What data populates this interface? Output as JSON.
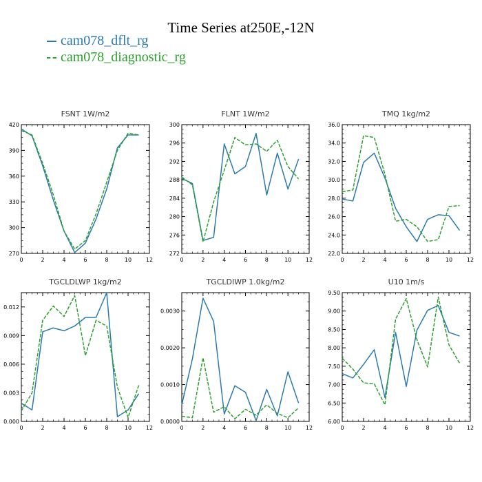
{
  "title": "Time Series at250E,-12N",
  "colors": {
    "dflt": "#2a7ab0",
    "diag": "#2ca02c"
  },
  "legend": [
    {
      "label": "cam078_dflt_rg",
      "color": "#2a7ab0"
    },
    {
      "label": "cam078_diagnostic_rg",
      "color": "#2ca02c"
    }
  ],
  "chart_data": [
    {
      "type": "line",
      "title": "FSNT   1W/m2",
      "x": [
        0,
        1,
        2,
        3,
        4,
        5,
        6,
        7,
        8,
        9,
        10,
        11
      ],
      "xlim": [
        0,
        12
      ],
      "xticks": [
        0,
        2,
        4,
        6,
        8,
        10,
        12
      ],
      "ylim": [
        270,
        420
      ],
      "yticks": [
        270,
        300,
        330,
        360,
        390,
        420
      ],
      "ytick_labels": [
        "270",
        "300",
        "330",
        "360",
        "390",
        "420"
      ],
      "series": [
        {
          "name": "cam078_dflt_rg",
          "values": [
            415,
            407,
            372,
            332,
            296,
            271,
            282,
            310,
            345,
            393,
            408,
            408
          ]
        },
        {
          "name": "cam078_diagnostic_rg",
          "values": [
            413,
            408,
            375,
            338,
            296,
            275,
            285,
            316,
            353,
            390,
            410,
            408
          ]
        }
      ]
    },
    {
      "type": "line",
      "title": "FLNT   1W/m2",
      "x": [
        0,
        1,
        2,
        3,
        4,
        5,
        6,
        7,
        8,
        9,
        10,
        11
      ],
      "xlim": [
        0,
        12
      ],
      "xticks": [
        0,
        2,
        4,
        6,
        8,
        10,
        12
      ],
      "ylim": [
        272,
        300
      ],
      "yticks": [
        272,
        276,
        280,
        284,
        288,
        292,
        296,
        300
      ],
      "ytick_labels": [
        "272",
        "276",
        "280",
        "284",
        "288",
        "292",
        "296",
        "300"
      ],
      "series": [
        {
          "name": "cam078_dflt_rg",
          "values": [
            288.3,
            287.2,
            274.8,
            275.5,
            295.8,
            289.3,
            290.9,
            298.1,
            284.7,
            293.8,
            286.0,
            292.5
          ]
        },
        {
          "name": "cam078_diagnostic_rg",
          "values": [
            288.6,
            286.9,
            274.5,
            283.2,
            290.1,
            297.2,
            295.6,
            295.8,
            294.2,
            296.6,
            290.9,
            288.2
          ]
        }
      ]
    },
    {
      "type": "line",
      "title": "TMQ   1kg/m2",
      "x": [
        0,
        1,
        2,
        3,
        4,
        5,
        6,
        7,
        8,
        9,
        10,
        11
      ],
      "xlim": [
        0,
        12
      ],
      "xticks": [
        0,
        2,
        4,
        6,
        8,
        10,
        12
      ],
      "ylim": [
        22,
        36
      ],
      "yticks": [
        22,
        24,
        26,
        28,
        30,
        32,
        34,
        36
      ],
      "ytick_labels": [
        "22.0",
        "24.0",
        "26.0",
        "28.0",
        "30.0",
        "32.0",
        "34.0",
        "36.0"
      ],
      "series": [
        {
          "name": "cam078_dflt_rg",
          "values": [
            27.9,
            27.7,
            31.9,
            32.9,
            30.2,
            26.9,
            24.9,
            23.3,
            25.7,
            26.2,
            26.1,
            24.5
          ]
        },
        {
          "name": "cam078_diagnostic_rg",
          "values": [
            28.7,
            28.9,
            34.8,
            34.6,
            30.6,
            25.5,
            25.7,
            24.9,
            23.3,
            23.5,
            27.1,
            27.2
          ]
        }
      ]
    },
    {
      "type": "line",
      "title": "TGCLDLWP   1kg/m2",
      "x": [
        0,
        1,
        2,
        3,
        4,
        5,
        6,
        7,
        8,
        9,
        10,
        11
      ],
      "xlim": [
        0,
        12
      ],
      "xticks": [
        0,
        2,
        4,
        6,
        8,
        10,
        12
      ],
      "ylim": [
        0,
        0.0135
      ],
      "yticks": [
        0,
        0.003,
        0.006,
        0.009,
        0.012
      ],
      "ytick_labels": [
        "0.000",
        "0.003",
        "0.006",
        "0.009",
        "0.012"
      ],
      "series": [
        {
          "name": "cam078_dflt_rg",
          "values": [
            0.0019,
            0.0012,
            0.0094,
            0.0098,
            0.0095,
            0.01,
            0.0109,
            0.0109,
            0.0135,
            0.0005,
            0.0012,
            0.0029
          ]
        },
        {
          "name": "cam078_diagnostic_rg",
          "values": [
            0.0011,
            0.003,
            0.0106,
            0.0121,
            0.011,
            0.0132,
            0.0069,
            0.0106,
            0.01,
            0.0036,
            0.0004,
            0.0038
          ]
        }
      ]
    },
    {
      "type": "line",
      "title": "TGCLDIWP   1.0kg/m2",
      "x": [
        0,
        1,
        2,
        3,
        4,
        5,
        6,
        7,
        8,
        9,
        10,
        11
      ],
      "xlim": [
        0,
        12
      ],
      "xticks": [
        0,
        2,
        4,
        6,
        8,
        10,
        12
      ],
      "ylim": [
        0,
        0.0035
      ],
      "yticks": [
        0,
        0.001,
        0.002,
        0.003
      ],
      "ytick_labels": [
        "0.0000",
        "0.0010",
        "0.0020",
        "0.0030"
      ],
      "series": [
        {
          "name": "cam078_dflt_rg",
          "values": [
            0.00045,
            0.0017,
            0.00335,
            0.00272,
            0.0002,
            0.00097,
            0.00079,
            2e-05,
            0.00087,
            0.00015,
            0.00135,
            0.0005
          ]
        },
        {
          "name": "cam078_diagnostic_rg",
          "values": [
            0.00014,
            0.0001,
            0.00173,
            0.00025,
            0.0004,
            7e-05,
            0.00033,
            0.00017,
            0.00045,
            0.00022,
            0.0001,
            0.00037
          ]
        }
      ]
    },
    {
      "type": "line",
      "title": "U10   1m/s",
      "x": [
        0,
        1,
        2,
        3,
        4,
        5,
        6,
        7,
        8,
        9,
        10,
        11
      ],
      "xlim": [
        0,
        12
      ],
      "xticks": [
        0,
        2,
        4,
        6,
        8,
        10,
        12
      ],
      "ylim": [
        6.0,
        9.5
      ],
      "yticks": [
        6.0,
        6.5,
        7.0,
        7.5,
        8.0,
        8.5,
        9.0,
        9.5
      ],
      "ytick_labels": [
        "6.00",
        "6.50",
        "7.00",
        "7.50",
        "8.00",
        "8.50",
        "9.00",
        "9.50"
      ],
      "series": [
        {
          "name": "cam078_dflt_rg",
          "values": [
            7.3,
            7.18,
            7.55,
            7.95,
            6.65,
            8.42,
            6.95,
            8.48,
            9.02,
            9.15,
            8.42,
            8.32
          ]
        },
        {
          "name": "cam078_diagnostic_rg",
          "values": [
            7.72,
            7.42,
            7.05,
            7.02,
            6.45,
            8.78,
            9.34,
            8.22,
            7.48,
            9.38,
            8.08,
            7.58
          ]
        }
      ]
    }
  ]
}
